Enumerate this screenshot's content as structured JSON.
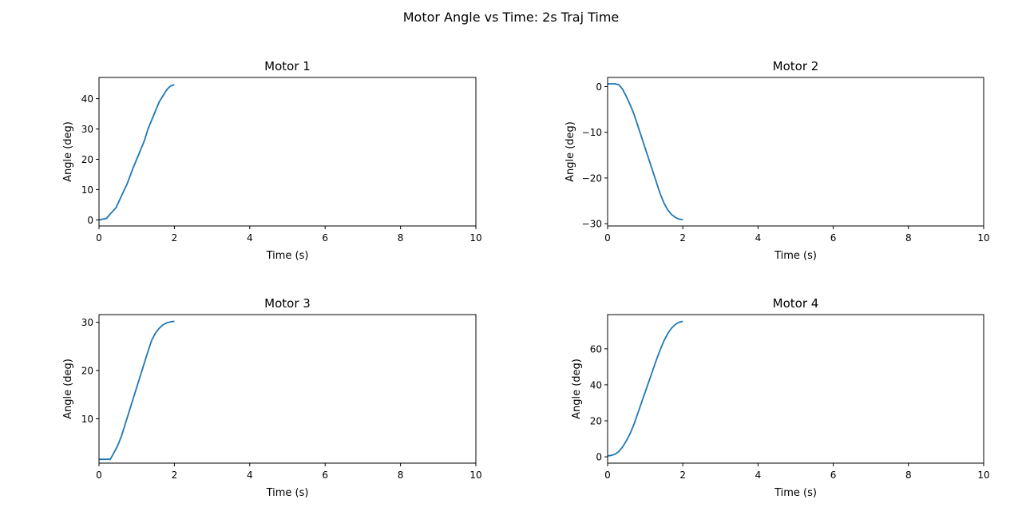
{
  "figure": {
    "suptitle": "Motor Angle vs Time: 2s Traj Time"
  },
  "style": {
    "line_color": "#1f77b4",
    "axes_color": "#000000",
    "background": "#ffffff"
  },
  "chart_data": [
    {
      "type": "line",
      "title": "Motor 1",
      "xlabel": "Time (s)",
      "ylabel": "Angle (deg)",
      "xlim": [
        0,
        10
      ],
      "ylim": [
        -2,
        47
      ],
      "xticks": [
        0,
        2,
        4,
        6,
        8,
        10
      ],
      "yticks": [
        0,
        10,
        20,
        30,
        40
      ],
      "grid": false,
      "series": [
        {
          "x": [
            0,
            0.2,
            0.3,
            0.45,
            0.6,
            0.75,
            0.9,
            1.0,
            1.1,
            1.2,
            1.3,
            1.4,
            1.5,
            1.6,
            1.7,
            1.8,
            1.9,
            2.0
          ],
          "y": [
            0,
            0.5,
            2,
            4,
            8,
            12,
            17,
            20,
            23,
            26,
            30,
            33,
            36,
            39,
            41,
            43,
            44.2,
            44.6
          ]
        }
      ]
    },
    {
      "type": "line",
      "title": "Motor 2",
      "xlabel": "Time (s)",
      "ylabel": "Angle (deg)",
      "xlim": [
        0,
        10
      ],
      "ylim": [
        -30.5,
        2
      ],
      "xticks": [
        0,
        2,
        4,
        6,
        8,
        10
      ],
      "yticks": [
        0,
        -10,
        -20,
        -30
      ],
      "grid": false,
      "series": [
        {
          "x": [
            0,
            0.1,
            0.2,
            0.3,
            0.4,
            0.5,
            0.6,
            0.7,
            0.8,
            0.9,
            1.0,
            1.1,
            1.2,
            1.3,
            1.4,
            1.5,
            1.6,
            1.7,
            1.8,
            1.9,
            2.0
          ],
          "y": [
            0.6,
            0.6,
            0.6,
            0.4,
            -0.6,
            -2.2,
            -4,
            -6,
            -8.5,
            -11,
            -13.5,
            -16,
            -18.5,
            -21,
            -23.5,
            -25.5,
            -27,
            -28,
            -28.6,
            -29,
            -29.1
          ]
        }
      ]
    },
    {
      "type": "line",
      "title": "Motor 3",
      "xlabel": "Time (s)",
      "ylabel": "Angle (deg)",
      "xlim": [
        0,
        10
      ],
      "ylim": [
        0.8,
        31.6
      ],
      "xticks": [
        0,
        2,
        4,
        6,
        8,
        10
      ],
      "yticks": [
        10,
        20,
        30
      ],
      "grid": false,
      "series": [
        {
          "x": [
            0,
            0.1,
            0.2,
            0.3,
            0.4,
            0.5,
            0.6,
            0.7,
            0.8,
            0.9,
            1.0,
            1.1,
            1.2,
            1.3,
            1.4,
            1.5,
            1.6,
            1.7,
            1.8,
            1.9,
            2.0
          ],
          "y": [
            1.6,
            1.6,
            1.6,
            1.6,
            3,
            4.5,
            6.5,
            9,
            11.5,
            14,
            16.5,
            19,
            21.5,
            24,
            26.3,
            27.8,
            28.8,
            29.5,
            29.9,
            30.1,
            30.2
          ]
        }
      ]
    },
    {
      "type": "line",
      "title": "Motor 4",
      "xlabel": "Time (s)",
      "ylabel": "Angle (deg)",
      "xlim": [
        0,
        10
      ],
      "ylim": [
        -3.5,
        79
      ],
      "xticks": [
        0,
        2,
        4,
        6,
        8,
        10
      ],
      "yticks": [
        0,
        20,
        40,
        60
      ],
      "grid": false,
      "series": [
        {
          "x": [
            0,
            0.1,
            0.2,
            0.3,
            0.4,
            0.5,
            0.6,
            0.7,
            0.8,
            0.9,
            1.0,
            1.1,
            1.2,
            1.3,
            1.4,
            1.5,
            1.6,
            1.7,
            1.8,
            1.9,
            2.0
          ],
          "y": [
            0.5,
            0.8,
            1.5,
            3,
            5.5,
            9,
            13,
            18,
            24,
            30,
            36,
            42,
            48,
            54,
            59.5,
            64.5,
            68.5,
            71.5,
            73.5,
            74.8,
            75.2
          ]
        }
      ]
    }
  ]
}
